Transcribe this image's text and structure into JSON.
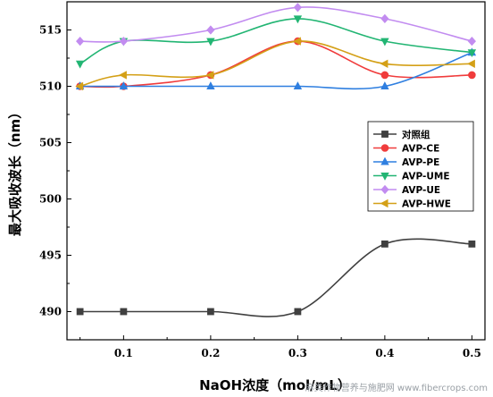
{
  "chart_data": {
    "type": "line",
    "xlabel": "NaOH浓度（mol/mL）",
    "ylabel": "最大吸收波长（nm）",
    "x": [
      0.05,
      0.1,
      0.2,
      0.3,
      0.4,
      0.5
    ],
    "x_ticks": [
      "0.1",
      "0.2",
      "0.3",
      "0.4",
      "0.5"
    ],
    "y_ticks": [
      "490",
      "495",
      "500",
      "505",
      "510",
      "515"
    ],
    "xlim": [
      0.035,
      0.515
    ],
    "ylim": [
      487.5,
      517.5
    ],
    "legend_position": "right-middle",
    "grid": false,
    "series": [
      {
        "name": "对照组",
        "color": "#404040",
        "marker": "square",
        "values": [
          490,
          490,
          490,
          490,
          496,
          496
        ]
      },
      {
        "name": "AVP-CE",
        "color": "#f03c3c",
        "marker": "circle",
        "values": [
          510,
          510,
          511,
          514,
          511,
          511
        ]
      },
      {
        "name": "AVP-PE",
        "color": "#2f7fe0",
        "marker": "triangle-up",
        "values": [
          510,
          510,
          510,
          510,
          510,
          513
        ]
      },
      {
        "name": "AVP-UME",
        "color": "#22b573",
        "marker": "triangle-down",
        "values": [
          512,
          514,
          514,
          516,
          514,
          513
        ]
      },
      {
        "name": "AVP-UE",
        "color": "#c28cf0",
        "marker": "diamond",
        "values": [
          514,
          514,
          515,
          517,
          516,
          514
        ]
      },
      {
        "name": "AVP-HWE",
        "color": "#d4a017",
        "marker": "triangle-left",
        "values": [
          510,
          511,
          511,
          514,
          512,
          512
        ]
      }
    ]
  },
  "watermark": "麻类作物营养与施肥网 www.fibercrops.com"
}
